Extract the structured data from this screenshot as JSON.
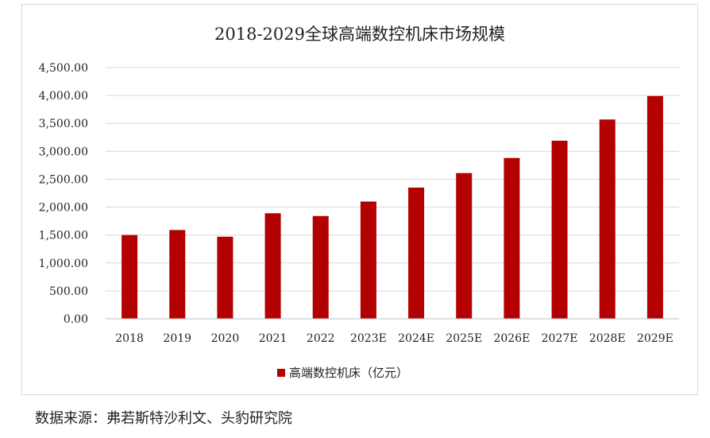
{
  "chart_data": {
    "type": "bar",
    "title": "2018-2029全球高端数控机床市场规模",
    "categories": [
      "2018",
      "2019",
      "2020",
      "2021",
      "2022",
      "2023E",
      "2024E",
      "2025E",
      "2026E",
      "2027E",
      "2028E",
      "2029E"
    ],
    "series": [
      {
        "name": "高端数控机床（亿元）",
        "values": [
          1500,
          1590,
          1470,
          1890,
          1840,
          2100,
          2350,
          2610,
          2880,
          3190,
          3570,
          3990
        ]
      }
    ],
    "ylim": [
      0,
      4500
    ],
    "yticks": [
      "0.00",
      "500.00",
      "1,000.00",
      "1,500.00",
      "2,000.00",
      "2,500.00",
      "3,000.00",
      "3,500.00",
      "4,000.00",
      "4,500.00"
    ],
    "grid": true,
    "legend": "bottom",
    "colors": {
      "bar": "#B30000",
      "grid": "#d9d9d9",
      "axis": "#bfbfbf"
    }
  },
  "source_text": "数据来源：弗若斯特沙利文、头豹研究院"
}
